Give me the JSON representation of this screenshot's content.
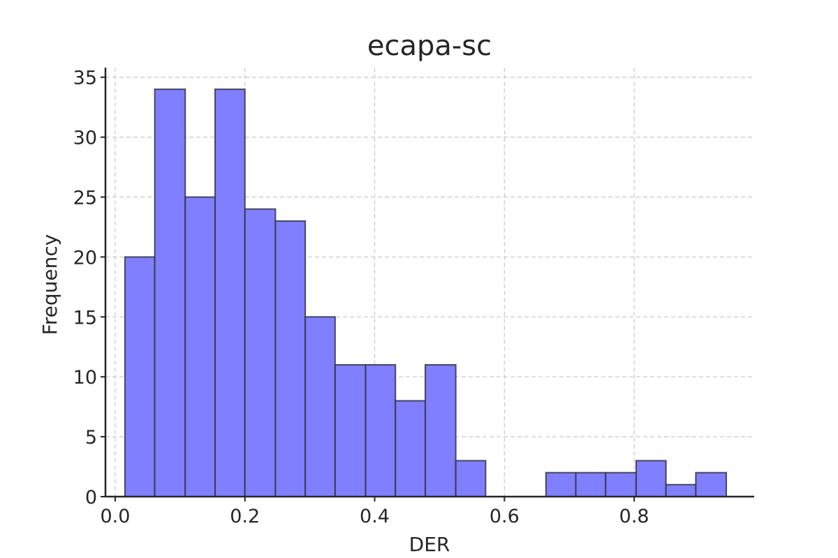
{
  "chart_data": {
    "type": "bar",
    "title": "ecapa-sc",
    "xlabel": "DER",
    "ylabel": "Frequency",
    "xlim": [
      -0.015,
      0.985
    ],
    "ylim": [
      0,
      35.8
    ],
    "xticks": [
      0.0,
      0.2,
      0.4,
      0.6,
      0.8
    ],
    "xtick_labels": [
      "0.0",
      "0.2",
      "0.4",
      "0.6",
      "0.8"
    ],
    "yticks": [
      0,
      5,
      10,
      15,
      20,
      25,
      30,
      35
    ],
    "ytick_labels": [
      "0",
      "5",
      "10",
      "15",
      "20",
      "25",
      "30",
      "35"
    ],
    "grid": true,
    "bin_edges": [
      0.015,
      0.061,
      0.108,
      0.154,
      0.2,
      0.247,
      0.293,
      0.339,
      0.386,
      0.432,
      0.478,
      0.525,
      0.571,
      0.617,
      0.664,
      0.71,
      0.756,
      0.803,
      0.849,
      0.895,
      0.942
    ],
    "values": [
      20,
      34,
      25,
      34,
      24,
      23,
      15,
      11,
      11,
      8,
      11,
      3,
      0,
      0,
      2,
      2,
      2,
      3,
      1,
      2
    ],
    "bar_color": "#7f7fff",
    "edge_color": "#333344",
    "grid_color": "#c8c8c8"
  }
}
